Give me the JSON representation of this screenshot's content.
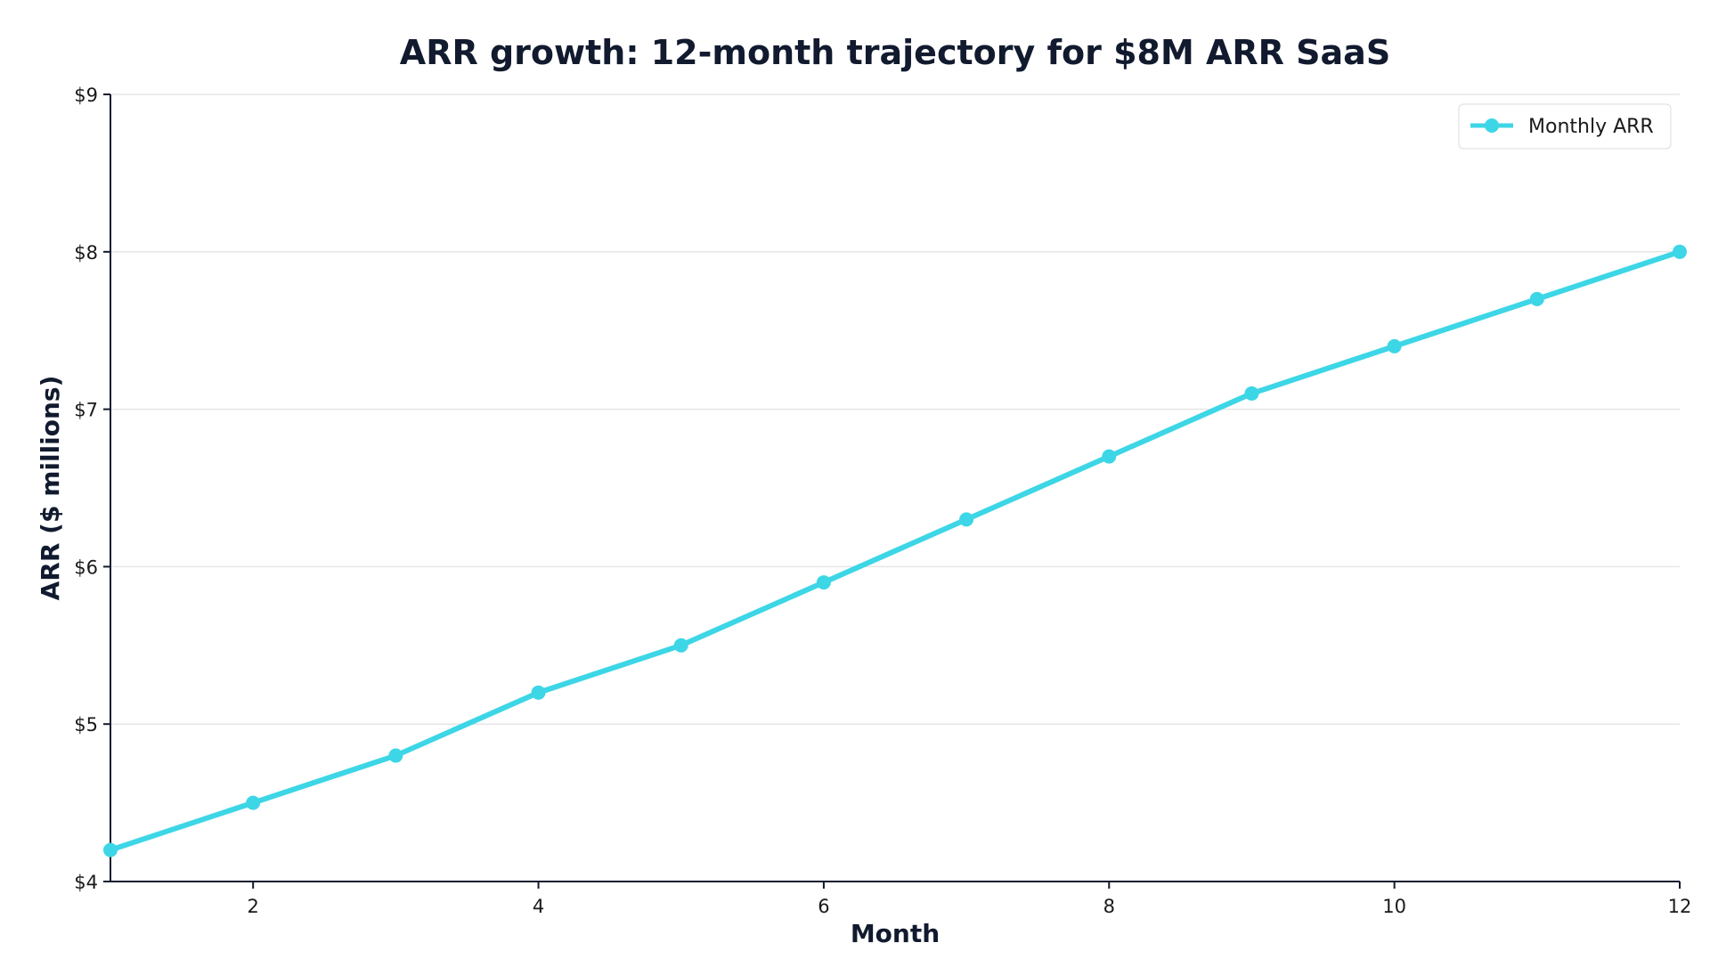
{
  "chart_data": {
    "type": "line",
    "title": "ARR growth: 12-month trajectory for $8M ARR SaaS",
    "xlabel": "Month",
    "ylabel": "ARR ($ millions)",
    "x": [
      1,
      2,
      3,
      4,
      5,
      6,
      7,
      8,
      9,
      10,
      11,
      12
    ],
    "series": [
      {
        "name": "Monthly ARR",
        "color": "#3dd6e6",
        "values": [
          4.2,
          4.5,
          4.8,
          5.2,
          5.5,
          5.9,
          6.3,
          6.7,
          7.1,
          7.4,
          7.7,
          8.0
        ]
      }
    ],
    "xlim": [
      1,
      12
    ],
    "ylim": [
      4,
      9
    ],
    "x_ticks": [
      2,
      4,
      6,
      8,
      10,
      12
    ],
    "x_tick_labels": [
      "2",
      "4",
      "6",
      "8",
      "10",
      "12"
    ],
    "y_ticks": [
      4,
      5,
      6,
      7,
      8,
      9
    ],
    "y_tick_labels": [
      "$4",
      "$5",
      "$6",
      "$7",
      "$8",
      "$9"
    ],
    "grid": "horizontal",
    "legend_position": "top-right",
    "colors": {
      "line": "#3dd6e6",
      "axis": "#111a2e",
      "grid": "#e6e6e6",
      "text": "#111a2e"
    }
  }
}
